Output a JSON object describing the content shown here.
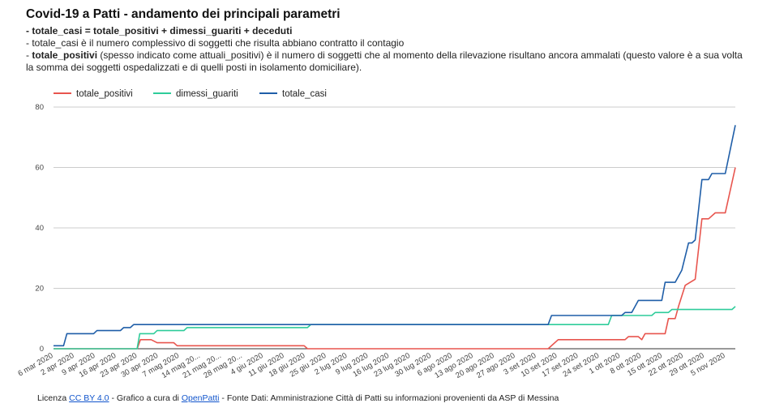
{
  "title": "Covid-19 a Patti - andamento dei principali parametri",
  "subtitle": {
    "line1_bold": "- totale_casi = totale_positivi + dimessi_guariti + deceduti",
    "line2": "- totale_casi è il numero complessivo di soggetti che risulta abbiano contratto il contagio",
    "line3_prefix": "- ",
    "line3_bold": "totale_positivi",
    "line3_rest": " (spesso indicato come attuali_positivi) è il numero di soggetti che al momento della rilevazione risultano ancora ammalati (questo valore è a sua volta la somma dei soggetti ospedalizzati e di quelli posti in isolamento domiciliare)."
  },
  "footer": {
    "prefix": "Licenza ",
    "license_link": "CC BY 4.0",
    "middle": " - Grafico a cura di ",
    "author_link": "OpenPatti",
    "suffix": " - Fonte Dati: Amministrazione Città di Patti su informazioni provenienti da ASP di Messina"
  },
  "chart_data": {
    "type": "line",
    "x_labels": [
      "6 mar 2020",
      "2 apr 2020",
      "9 apr 2020",
      "16 apr 2020",
      "23 apr 2020",
      "30 apr 2020",
      "7 mag 2020",
      "14 mag 20...",
      "21 mag 20...",
      "28 mag 20...",
      "4 giu 2020",
      "11 giu 2020",
      "18 giu 2020",
      "25 giu 2020",
      "2 lug 2020",
      "9 lug 2020",
      "16 lug 2020",
      "23 lug 2020",
      "30 lug 2020",
      "6 ago 2020",
      "13 ago 2020",
      "20 ago 2020",
      "27 ago 2020",
      "3 set 2020",
      "10 set 2020",
      "17 set 2020",
      "24 set 2020",
      "1 ott 2020",
      "8 ott 2020",
      "15 ott 2020",
      "22 ott 2020",
      "29 ott 2020",
      "5 nov 2020"
    ],
    "ylim": [
      0,
      80
    ],
    "yticks": [
      0,
      20,
      40,
      60,
      80
    ],
    "grid": true,
    "legend_position": "top-left",
    "series": [
      {
        "name": "totale_positivi",
        "color": "#e8554e",
        "points": [
          [
            0,
            0
          ],
          [
            12.5,
            0
          ],
          [
            12.6,
            0.5
          ],
          [
            13,
            3
          ],
          [
            14.6,
            3
          ],
          [
            15.5,
            2
          ],
          [
            18,
            2
          ],
          [
            18.5,
            1
          ],
          [
            37.5,
            1
          ],
          [
            38,
            0
          ],
          [
            74,
            0
          ],
          [
            75.5,
            3
          ],
          [
            85.5,
            3
          ],
          [
            86,
            4
          ],
          [
            87.5,
            4
          ],
          [
            88,
            3
          ],
          [
            88.5,
            5
          ],
          [
            91.5,
            5
          ],
          [
            92,
            10
          ],
          [
            93,
            10
          ],
          [
            93.5,
            14
          ],
          [
            94.5,
            21
          ],
          [
            96,
            23
          ],
          [
            97,
            43
          ],
          [
            98,
            43
          ],
          [
            99,
            45
          ],
          [
            100.5,
            45
          ],
          [
            102,
            60
          ]
        ]
      },
      {
        "name": "dimessi_guariti",
        "color": "#2ecc9a",
        "points": [
          [
            0,
            0
          ],
          [
            12.5,
            0
          ],
          [
            12.9,
            5
          ],
          [
            15,
            5
          ],
          [
            15.5,
            6
          ],
          [
            19.5,
            6
          ],
          [
            20,
            7
          ],
          [
            38,
            7
          ],
          [
            38.5,
            8
          ],
          [
            83,
            8
          ],
          [
            83.5,
            11
          ],
          [
            89.5,
            11
          ],
          [
            90,
            12
          ],
          [
            92,
            12
          ],
          [
            92.5,
            13
          ],
          [
            101.5,
            13
          ],
          [
            102,
            14
          ]
        ]
      },
      {
        "name": "totale_casi",
        "color": "#1f5ea8",
        "points": [
          [
            0,
            1
          ],
          [
            1.5,
            1
          ],
          [
            2,
            5
          ],
          [
            6,
            5
          ],
          [
            6.5,
            6
          ],
          [
            10,
            6
          ],
          [
            10.5,
            7
          ],
          [
            11.5,
            7
          ],
          [
            12,
            8
          ],
          [
            74,
            8
          ],
          [
            74.5,
            11
          ],
          [
            85,
            11
          ],
          [
            85.5,
            12
          ],
          [
            86.5,
            12
          ],
          [
            87,
            14
          ],
          [
            87.5,
            16
          ],
          [
            91,
            16
          ],
          [
            91.5,
            22
          ],
          [
            93,
            22
          ],
          [
            94,
            26
          ],
          [
            95,
            35
          ],
          [
            95.5,
            35
          ],
          [
            96,
            36
          ],
          [
            97,
            56
          ],
          [
            98,
            56
          ],
          [
            98.5,
            58
          ],
          [
            100.5,
            58
          ],
          [
            102,
            74
          ]
        ]
      }
    ]
  }
}
